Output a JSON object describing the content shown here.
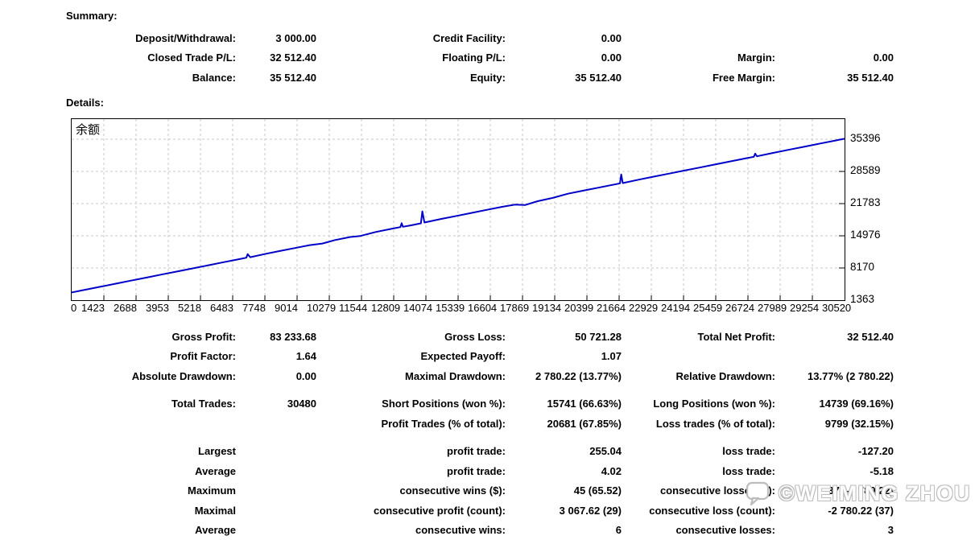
{
  "summary": {
    "title": "Summary:",
    "rows": [
      [
        "Deposit/Withdrawal:",
        "3 000.00",
        "Credit Facility:",
        "0.00",
        "",
        ""
      ],
      [
        "Closed Trade P/L:",
        "32 512.40",
        "Floating P/L:",
        "0.00",
        "Margin:",
        "0.00"
      ],
      [
        "Balance:",
        "35 512.40",
        "Equity:",
        "35 512.40",
        "Free Margin:",
        "35 512.40"
      ]
    ]
  },
  "details": {
    "title": "Details:",
    "rows": [
      [
        "Gross Profit:",
        "83 233.68",
        "Gross Loss:",
        "50 721.28",
        "Total Net Profit:",
        "32 512.40"
      ],
      [
        "Profit Factor:",
        "1.64",
        "Expected Payoff:",
        "1.07",
        "",
        ""
      ],
      [
        "Absolute Drawdown:",
        "0.00",
        "Maximal Drawdown:",
        "2 780.22 (13.77%)",
        "Relative Drawdown:",
        "13.77% (2 780.22)"
      ],
      "gap",
      [
        "Total Trades:",
        "30480",
        "Short Positions (won %):",
        "15741 (66.63%)",
        "Long Positions (won %):",
        "14739 (69.16%)"
      ],
      [
        "",
        "",
        "Profit Trades (% of total):",
        "20681 (67.85%)",
        "Loss trades (% of total):",
        "9799 (32.15%)"
      ],
      "gap",
      [
        "Largest",
        "",
        "profit trade:",
        "255.04",
        "loss trade:",
        "-127.20"
      ],
      [
        "Average",
        "",
        "profit trade:",
        "4.02",
        "loss trade:",
        "-5.18"
      ],
      [
        "Maximum",
        "",
        "consecutive wins ($):",
        "45 (65.52)",
        "consecutive losses ($):",
        "37 (-2 780.22)"
      ],
      [
        "Maximal",
        "",
        "consecutive profit (count):",
        "3 067.62 (29)",
        "consecutive loss (count):",
        "-2 780.22 (37)"
      ],
      [
        "Average",
        "",
        "consecutive wins:",
        "6",
        "consecutive losses:",
        "3"
      ]
    ]
  },
  "chart_data": {
    "type": "line",
    "title": "余额",
    "grid": "dashed",
    "grid_color": "#c8c8c8",
    "line_color": "#0000C8",
    "x_range": [
      0,
      30520
    ],
    "y_range": [
      1363,
      39658
    ],
    "x_ticks": [
      "0",
      "1423",
      "2688",
      "3953",
      "5218",
      "6483",
      "7748",
      "9014",
      "10279",
      "11544",
      "12809",
      "14074",
      "15339",
      "16604",
      "17869",
      "19134",
      "20399",
      "21664",
      "22929",
      "24194",
      "25459",
      "26724",
      "27989",
      "29254",
      "30520"
    ],
    "y_ticks": [
      1363,
      8170,
      14976,
      21783,
      28589,
      35396
    ],
    "series": [
      {
        "name": "余额",
        "points": [
          [
            0,
            3000
          ],
          [
            600,
            3640
          ],
          [
            1200,
            4280
          ],
          [
            1800,
            4920
          ],
          [
            2400,
            5560
          ],
          [
            3000,
            6200
          ],
          [
            3600,
            6840
          ],
          [
            4200,
            7470
          ],
          [
            4800,
            8110
          ],
          [
            5400,
            8750
          ],
          [
            6000,
            9390
          ],
          [
            6600,
            10030
          ],
          [
            6900,
            10350
          ],
          [
            6950,
            11100
          ],
          [
            7050,
            10450
          ],
          [
            7600,
            11100
          ],
          [
            8200,
            11740
          ],
          [
            8800,
            12380
          ],
          [
            9400,
            13010
          ],
          [
            9900,
            13350
          ],
          [
            10400,
            14080
          ],
          [
            11000,
            14720
          ],
          [
            11400,
            14950
          ],
          [
            12000,
            15780
          ],
          [
            12600,
            16420
          ],
          [
            12980,
            16820
          ],
          [
            13030,
            17650
          ],
          [
            13080,
            16880
          ],
          [
            13400,
            17200
          ],
          [
            13790,
            17620
          ],
          [
            13850,
            20150
          ],
          [
            13930,
            17780
          ],
          [
            14600,
            18550
          ],
          [
            15200,
            19190
          ],
          [
            15800,
            19830
          ],
          [
            16400,
            20470
          ],
          [
            17000,
            21110
          ],
          [
            17500,
            21560
          ],
          [
            17900,
            21480
          ],
          [
            18400,
            22300
          ],
          [
            19000,
            23000
          ],
          [
            19600,
            23880
          ],
          [
            20200,
            24520
          ],
          [
            20800,
            25160
          ],
          [
            21500,
            25900
          ],
          [
            21650,
            26060
          ],
          [
            21700,
            27950
          ],
          [
            21760,
            26130
          ],
          [
            22400,
            26860
          ],
          [
            23000,
            27500
          ],
          [
            23600,
            28140
          ],
          [
            24200,
            28780
          ],
          [
            24800,
            29420
          ],
          [
            25400,
            30060
          ],
          [
            26000,
            30700
          ],
          [
            26600,
            31340
          ],
          [
            26940,
            31700
          ],
          [
            26990,
            32350
          ],
          [
            27060,
            31790
          ],
          [
            27700,
            32510
          ],
          [
            28300,
            33150
          ],
          [
            28900,
            33790
          ],
          [
            29500,
            34430
          ],
          [
            30100,
            35070
          ],
          [
            30520,
            35512
          ]
        ]
      }
    ]
  },
  "watermark": {
    "icon": "speech-bubble-icon",
    "text": "©WEIMING ZHOU"
  }
}
